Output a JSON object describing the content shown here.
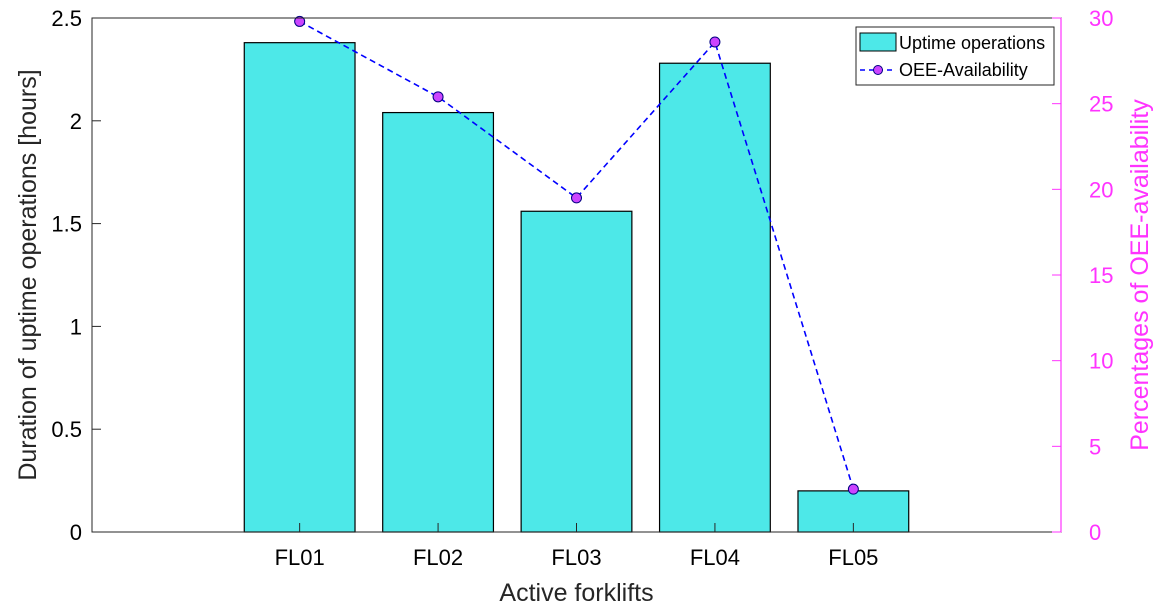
{
  "chart_data": {
    "type": "bar",
    "categories": [
      "FL01",
      "FL02",
      "FL03",
      "FL04",
      "FL05"
    ],
    "xlabel": "Active forklifts",
    "ylabel": "Duration of uptime operations [hours]",
    "ylabel_right": "Percentages of OEE-availability",
    "ylim": [
      0,
      2.5
    ],
    "ylim_right": [
      0,
      30
    ],
    "yticks": [
      "0",
      "0.5",
      "1",
      "1.5",
      "2",
      "2.5"
    ],
    "yticks_right": [
      "0",
      "5",
      "10",
      "15",
      "20",
      "25",
      "30"
    ],
    "grid": false,
    "legend_position": "top-right",
    "series": [
      {
        "name": "Uptime operations",
        "type": "bar",
        "axis": "left",
        "values": [
          2.38,
          2.04,
          1.56,
          2.28,
          0.2
        ],
        "color": "#4de8e8",
        "edge_color": "#000000"
      },
      {
        "name": "OEE-Availability",
        "type": "line",
        "axis": "right",
        "line_style": "dashed",
        "values": [
          29.8,
          25.4,
          19.5,
          28.6,
          2.5
        ],
        "color": "#0000ff",
        "marker_color": "#cc44ff"
      }
    ],
    "colors": {
      "left_axis": "#000000",
      "right_axis": "#ff33ff",
      "axis_box": "#262626"
    }
  }
}
